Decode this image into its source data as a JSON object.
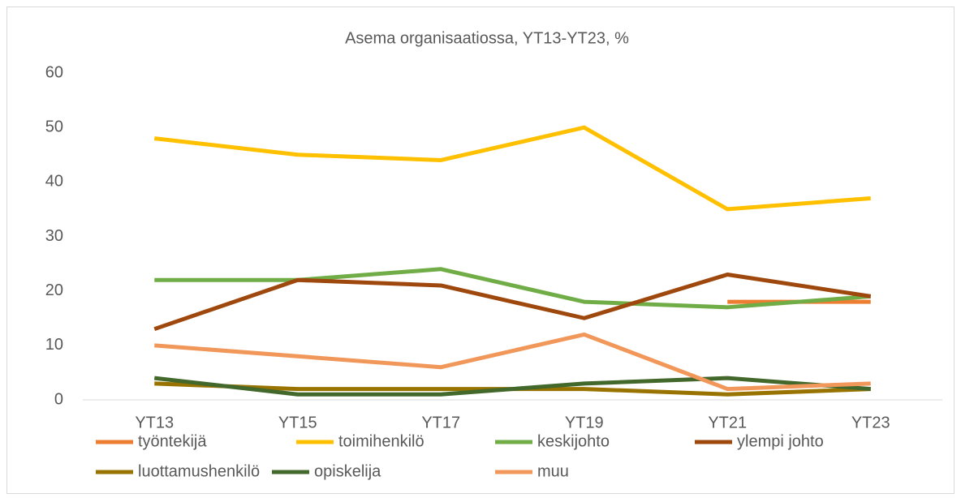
{
  "chart_data": {
    "type": "line",
    "title": "Asema organisaatiossa, YT13-YT23, %",
    "categories": [
      "YT13",
      "YT15",
      "YT17",
      "YT19",
      "YT21",
      "YT23"
    ],
    "series": [
      {
        "name": "työntekijä",
        "color": "#ed7d31",
        "values": [
          null,
          null,
          null,
          null,
          18,
          18
        ]
      },
      {
        "name": "toimihenkilö",
        "color": "#ffc000",
        "values": [
          48,
          45,
          44,
          50,
          35,
          37
        ]
      },
      {
        "name": "keskijohto",
        "color": "#70ad47",
        "values": [
          22,
          22,
          24,
          18,
          17,
          19
        ]
      },
      {
        "name": "ylempi johto",
        "color": "#9e480e",
        "values": [
          13,
          22,
          21,
          15,
          23,
          19
        ]
      },
      {
        "name": "luottamushenkilö",
        "color": "#997300",
        "values": [
          3,
          2,
          2,
          2,
          1,
          2
        ]
      },
      {
        "name": "opiskelija",
        "color": "#43682b",
        "values": [
          4,
          1,
          1,
          3,
          4,
          2
        ]
      },
      {
        "name": "muu",
        "color": "#f1975a",
        "values": [
          10,
          8,
          6,
          12,
          2,
          3
        ]
      }
    ],
    "ylim": [
      0,
      60
    ],
    "yticks": [
      0,
      10,
      20,
      30,
      40,
      50,
      60
    ],
    "grid": false,
    "legend": "bottom"
  }
}
